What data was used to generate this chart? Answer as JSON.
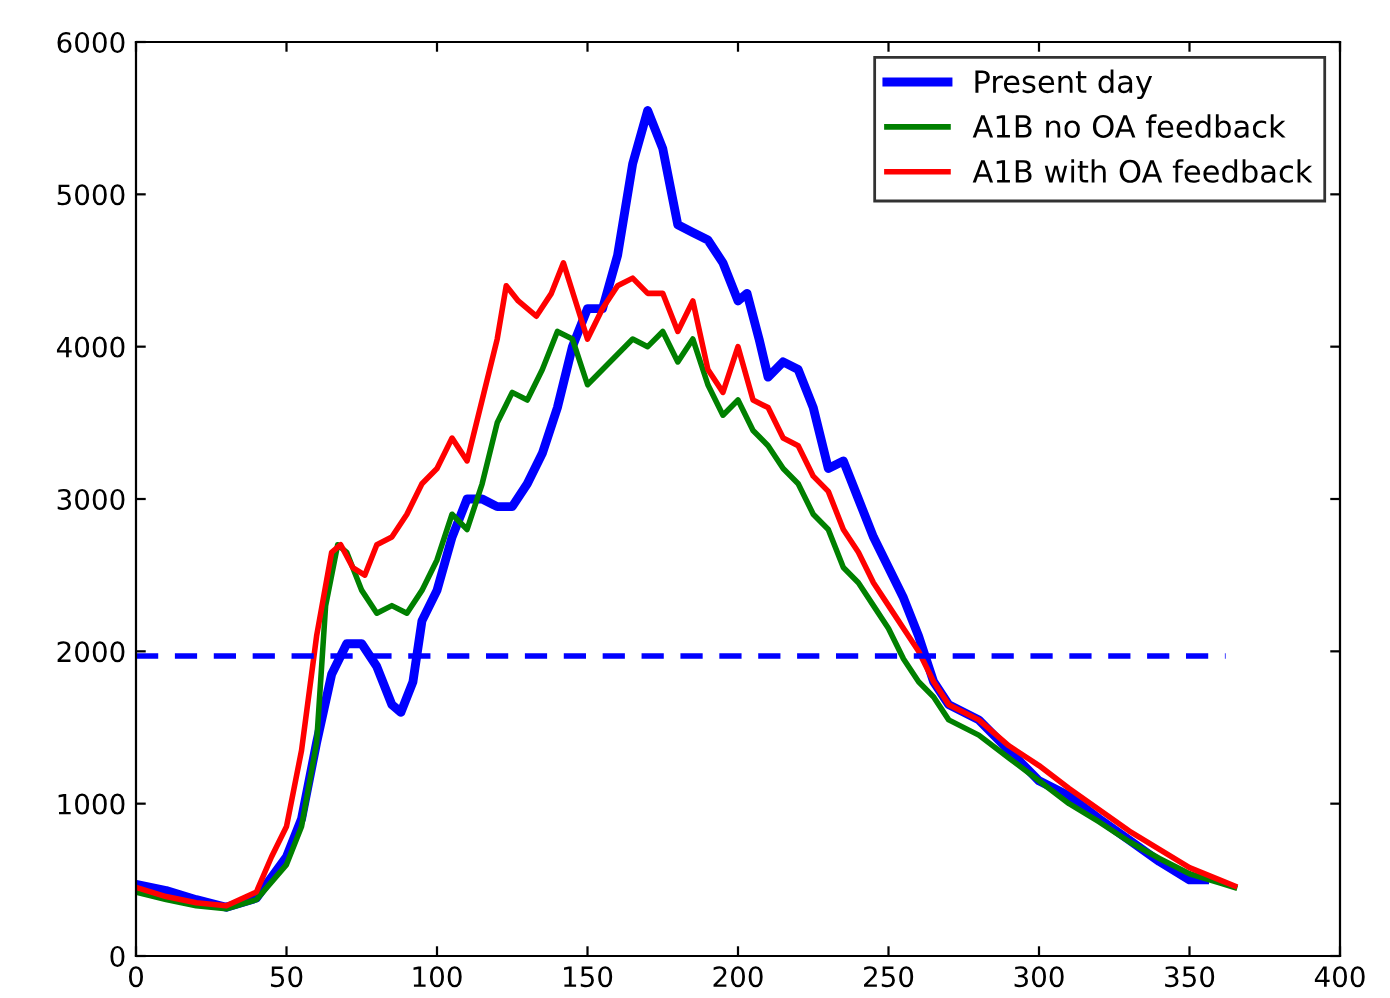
{
  "chart_data": {
    "type": "line",
    "xlim": [
      0,
      400
    ],
    "ylim": [
      0,
      6000
    ],
    "xticks": [
      0,
      50,
      100,
      150,
      200,
      250,
      300,
      350,
      400
    ],
    "yticks": [
      0,
      1000,
      2000,
      3000,
      4000,
      5000,
      6000
    ],
    "grid": false,
    "legend": "top right",
    "marker": "none",
    "series": [
      {
        "name": "Present day",
        "color": "#0000ff",
        "x": [
          0,
          10,
          20,
          30,
          40,
          50,
          55,
          60,
          65,
          70,
          75,
          80,
          85,
          88,
          92,
          95,
          100,
          105,
          110,
          115,
          120,
          125,
          130,
          135,
          140,
          145,
          150,
          155,
          160,
          165,
          170,
          175,
          180,
          185,
          190,
          195,
          200,
          203,
          207,
          210,
          215,
          220,
          225,
          230,
          235,
          240,
          245,
          250,
          255,
          260,
          265,
          270,
          280,
          290,
          300,
          310,
          320,
          330,
          340,
          350,
          355
        ],
        "values": [
          470,
          430,
          370,
          320,
          380,
          650,
          900,
          1400,
          1850,
          2050,
          2050,
          1900,
          1650,
          1600,
          1800,
          2200,
          2400,
          2750,
          3000,
          3000,
          2950,
          2950,
          3100,
          3300,
          3600,
          4000,
          4250,
          4250,
          4600,
          5200,
          5550,
          5300,
          4800,
          4750,
          4700,
          4550,
          4300,
          4350,
          4050,
          3800,
          3900,
          3850,
          3600,
          3200,
          3250,
          3000,
          2750,
          2550,
          2350,
          2100,
          1800,
          1650,
          1550,
          1350,
          1150,
          1050,
          900,
          760,
          620,
          500,
          500
        ]
      },
      {
        "name": "A1B no OA feedback",
        "color": "#008000",
        "x": [
          0,
          10,
          20,
          30,
          40,
          50,
          55,
          60,
          63,
          67,
          70,
          75,
          80,
          85,
          90,
          95,
          100,
          105,
          110,
          115,
          120,
          125,
          130,
          135,
          140,
          145,
          150,
          155,
          160,
          165,
          170,
          175,
          180,
          185,
          190,
          195,
          200,
          205,
          210,
          215,
          220,
          225,
          230,
          235,
          240,
          245,
          250,
          255,
          260,
          265,
          270,
          280,
          290,
          300,
          310,
          320,
          330,
          340,
          350,
          360,
          365
        ],
        "values": [
          420,
          370,
          330,
          310,
          370,
          600,
          850,
          1400,
          2300,
          2700,
          2650,
          2400,
          2250,
          2300,
          2250,
          2400,
          2600,
          2900,
          2800,
          3100,
          3500,
          3700,
          3650,
          3850,
          4100,
          4050,
          3750,
          3850,
          3950,
          4050,
          4000,
          4100,
          3900,
          4050,
          3750,
          3550,
          3650,
          3450,
          3350,
          3200,
          3100,
          2900,
          2800,
          2550,
          2450,
          2300,
          2150,
          1950,
          1800,
          1700,
          1550,
          1450,
          1300,
          1150,
          1000,
          880,
          750,
          640,
          540,
          480,
          450
        ]
      },
      {
        "name": "A1B with OA feedback",
        "color": "#ff0000",
        "x": [
          0,
          10,
          20,
          30,
          40,
          45,
          50,
          55,
          60,
          65,
          68,
          72,
          76,
          80,
          85,
          90,
          95,
          100,
          105,
          110,
          115,
          120,
          123,
          127,
          133,
          138,
          142,
          146,
          150,
          155,
          160,
          165,
          170,
          175,
          180,
          185,
          190,
          195,
          200,
          205,
          210,
          215,
          220,
          225,
          230,
          235,
          240,
          245,
          250,
          255,
          260,
          265,
          270,
          280,
          290,
          300,
          310,
          320,
          330,
          340,
          350,
          360,
          365
        ],
        "values": [
          450,
          390,
          350,
          330,
          420,
          650,
          850,
          1350,
          2100,
          2650,
          2700,
          2550,
          2500,
          2700,
          2750,
          2900,
          3100,
          3200,
          3400,
          3250,
          3650,
          4050,
          4400,
          4300,
          4200,
          4350,
          4550,
          4300,
          4050,
          4250,
          4400,
          4450,
          4350,
          4350,
          4100,
          4300,
          3850,
          3700,
          4000,
          3650,
          3600,
          3400,
          3350,
          3150,
          3050,
          2800,
          2650,
          2450,
          2300,
          2150,
          2000,
          1800,
          1650,
          1550,
          1380,
          1250,
          1100,
          960,
          820,
          700,
          580,
          500,
          460
        ]
      },
      {
        "color": "#0000ff",
        "line_style": "dashed",
        "x": [
          0,
          362
        ],
        "values": [
          1970,
          1970
        ]
      }
    ]
  }
}
